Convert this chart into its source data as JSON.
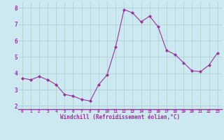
{
  "x": [
    0,
    1,
    2,
    3,
    4,
    5,
    6,
    7,
    8,
    9,
    10,
    11,
    12,
    13,
    14,
    15,
    16,
    17,
    18,
    19,
    20,
    21,
    22,
    23
  ],
  "y": [
    3.7,
    3.6,
    3.8,
    3.6,
    3.3,
    2.7,
    2.6,
    2.4,
    2.3,
    3.3,
    3.9,
    5.6,
    7.9,
    7.7,
    7.15,
    7.5,
    6.85,
    5.4,
    5.15,
    4.65,
    4.15,
    4.1,
    4.5,
    5.25
  ],
  "line_color": "#993399",
  "marker_color": "#993399",
  "bg_color": "#cce8f0",
  "grid_color": "#aacccc",
  "xlabel": "Windchill (Refroidissement éolien,°C)",
  "xlabel_color": "#993399",
  "tick_color": "#993399",
  "ylim": [
    1.8,
    8.4
  ],
  "xlim": [
    -0.5,
    23.5
  ],
  "yticks": [
    2,
    3,
    4,
    5,
    6,
    7,
    8
  ],
  "xticks": [
    0,
    1,
    2,
    3,
    4,
    5,
    6,
    7,
    8,
    9,
    10,
    11,
    12,
    13,
    14,
    15,
    16,
    17,
    18,
    19,
    20,
    21,
    22,
    23
  ],
  "xtick_labels": [
    "0",
    "1",
    "2",
    "3",
    "4",
    "5",
    "6",
    "7",
    "8",
    "9",
    "10",
    "11",
    "12",
    "13",
    "14",
    "15",
    "16",
    "17",
    "18",
    "19",
    "20",
    "21",
    "22",
    "23"
  ]
}
